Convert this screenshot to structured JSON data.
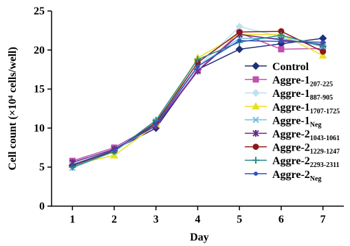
{
  "chart_data": {
    "type": "line",
    "xlabel": "Day",
    "ylabel": "Cell count (×10⁴ cells/well)",
    "ylim": [
      0,
      25
    ],
    "yticks": [
      0,
      5,
      10,
      15,
      20,
      25
    ],
    "x": [
      1,
      2,
      3,
      4,
      5,
      6,
      7
    ],
    "grid": false,
    "legend_position": "right",
    "series": [
      {
        "name": "Control",
        "name_base": "Control",
        "name_sub": "",
        "color": "#1f2f7a",
        "marker": "diamond",
        "values": [
          5.2,
          7.2,
          10.0,
          17.5,
          20.1,
          20.8,
          21.5
        ]
      },
      {
        "name": "Aggre-1 207-225",
        "name_base": "Aggre-1",
        "name_sub": "207-225",
        "color": "#c050b0",
        "marker": "square",
        "values": [
          5.8,
          7.5,
          10.5,
          17.4,
          22.2,
          20.1,
          20.2
        ]
      },
      {
        "name": "Aggre-1 887-905",
        "name_base": "Aggre-1",
        "name_sub": "887-905",
        "color": "#c0e0f0",
        "marker": "diamond",
        "values": [
          5.4,
          7.0,
          10.6,
          17.8,
          23.0,
          21.7,
          20.7
        ]
      },
      {
        "name": "Aggre-1 1707-1725",
        "name_base": "Aggre-1",
        "name_sub": "1707-1725",
        "color": "#e8e020",
        "marker": "triangle",
        "values": [
          5.3,
          6.5,
          10.4,
          19.0,
          22.0,
          22.0,
          19.3
        ]
      },
      {
        "name": "Aggre-1 Neg",
        "name_base": "Aggre-1",
        "name_sub": "Neg",
        "color": "#70c0e0",
        "marker": "x",
        "values": [
          4.9,
          7.0,
          10.9,
          17.9,
          21.5,
          21.5,
          20.5
        ]
      },
      {
        "name": "Aggre-2 1043-1061",
        "name_base": "Aggre-2",
        "name_sub": "1043-1061",
        "color": "#6a2a8a",
        "marker": "star",
        "values": [
          5.6,
          7.3,
          10.3,
          17.3,
          22.0,
          21.3,
          20.7
        ]
      },
      {
        "name": "Aggre-2 1229-1247",
        "name_base": "Aggre-2",
        "name_sub": "1229-1247",
        "color": "#8a1a1a",
        "marker": "circle",
        "values": [
          5.2,
          7.1,
          10.7,
          18.4,
          22.3,
          22.4,
          19.8
        ]
      },
      {
        "name": "Aggre-2 2293-2311",
        "name_base": "Aggre-2",
        "name_sub": "2293-2311",
        "color": "#2a8a8a",
        "marker": "plus",
        "values": [
          5.0,
          7.0,
          11.0,
          18.8,
          21.0,
          21.9,
          20.5
        ]
      },
      {
        "name": "Aggre-2 Neg",
        "name_base": "Aggre-2",
        "name_sub": "Neg",
        "color": "#3050c0",
        "marker": "dot",
        "values": [
          5.3,
          7.2,
          10.5,
          17.9,
          21.2,
          21.1,
          21.0
        ]
      }
    ]
  }
}
